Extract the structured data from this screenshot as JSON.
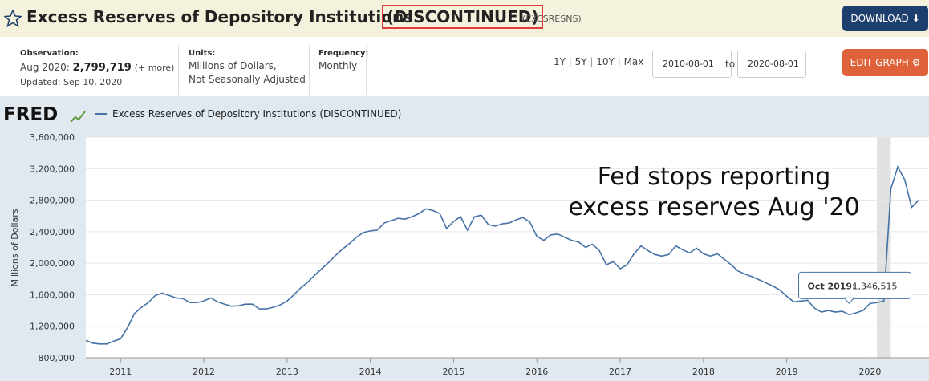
{
  "header": {
    "title": "Excess Reserves of Depository Institutions",
    "status": "(DISCONTINUED)",
    "series_id": "(EXCSRESNS)",
    "download": "DOWNLOAD"
  },
  "info": {
    "observation_label": "Observation:",
    "observation_date": "Aug 2020:",
    "observation_value": "2,799,719",
    "more": "(+ more)",
    "updated": "Updated: Sep 10, 2020",
    "units_label": "Units:",
    "units_1": "Millions of Dollars,",
    "units_2": "Not Seasonally Adjusted",
    "frequency_label": "Frequency:",
    "frequency": "Monthly"
  },
  "controls": {
    "ranges": [
      "1Y",
      "5Y",
      "10Y",
      "Max"
    ],
    "start_date": "2010-08-01",
    "to": "to",
    "end_date": "2020-08-01",
    "edit": "EDIT GRAPH"
  },
  "chart_data": {
    "type": "line",
    "logo": "FRED",
    "ylabel": "Millions of Dollars",
    "annotation": [
      "Fed stops reporting",
      "excess reserves Aug '20"
    ],
    "recession": [
      "2020-02-01",
      "2020-04-01"
    ],
    "xticks": [
      2011,
      2012,
      2013,
      2014,
      2015,
      2016,
      2017,
      2018,
      2019,
      2020
    ],
    "ylim": [
      800000,
      3600000
    ],
    "yticks": [
      {
        "value": 800000,
        "label": "800,000"
      },
      {
        "value": 1200000,
        "label": "1,200,000"
      },
      {
        "value": 1600000,
        "label": "1,600,000"
      },
      {
        "value": 2000000,
        "label": "2,000,000"
      },
      {
        "value": 2400000,
        "label": "2,400,000"
      },
      {
        "value": 2800000,
        "label": "2,800,000"
      },
      {
        "value": 3200000,
        "label": "3,200,000"
      },
      {
        "value": 3600000,
        "label": "3,600,000"
      }
    ],
    "grid": true,
    "tooltip": "Oct 2019:",
    "series": [
      {
        "name": "Excess Reserves of Depository Institutions (DISCONTINUED)",
        "color": "#4572a7",
        "values": [
          1020000,
          985000,
          975000,
          975000,
          1010000,
          1040000,
          1180000,
          1360000,
          1440000,
          1500000,
          1590000,
          1620000,
          1590000,
          1560000,
          1550000,
          1500000,
          1500000,
          1520000,
          1560000,
          1510000,
          1480000,
          1455000,
          1460000,
          1480000,
          1480000,
          1420000,
          1420000,
          1440000,
          1470000,
          1520000,
          1600000,
          1690000,
          1760000,
          1850000,
          1930000,
          2010000,
          2100000,
          2180000,
          2250000,
          2330000,
          2390000,
          2410000,
          2420000,
          2510000,
          2540000,
          2570000,
          2560000,
          2590000,
          2630000,
          2690000,
          2670000,
          2630000,
          2440000,
          2530000,
          2590000,
          2420000,
          2590000,
          2610000,
          2490000,
          2470000,
          2500000,
          2510000,
          2550000,
          2580000,
          2520000,
          2340000,
          2290000,
          2360000,
          2370000,
          2330000,
          2290000,
          2270000,
          2200000,
          2240000,
          2160000,
          1980000,
          2020000,
          1930000,
          1980000,
          2120000,
          2220000,
          2160000,
          2110000,
          2090000,
          2110000,
          2220000,
          2170000,
          2130000,
          2190000,
          2120000,
          2090000,
          2120000,
          2050000,
          1980000,
          1900000,
          1860000,
          1830000,
          1790000,
          1750000,
          1710000,
          1660000,
          1580000,
          1510000,
          1520000,
          1530000,
          1430000,
          1380000,
          1400000,
          1380000,
          1390000,
          1346515,
          1370000,
          1400000,
          1490000,
          1500000,
          1520000,
          2940000,
          3220000,
          3060000,
          2710000,
          2799719
        ],
        "value_labels": [
          null,
          null,
          null,
          null,
          null,
          null,
          null,
          null,
          null,
          null,
          null,
          null,
          null,
          null,
          null,
          null,
          null,
          null,
          null,
          null,
          null,
          null,
          null,
          null,
          null,
          null,
          null,
          null,
          null,
          null,
          null,
          null,
          null,
          null,
          null,
          null,
          null,
          null,
          null,
          null,
          null,
          null,
          null,
          null,
          null,
          null,
          null,
          null,
          null,
          null,
          null,
          null,
          null,
          null,
          null,
          null,
          null,
          null,
          null,
          null,
          null,
          null,
          null,
          null,
          null,
          null,
          null,
          null,
          null,
          null,
          null,
          null,
          null,
          null,
          null,
          null,
          null,
          null,
          null,
          null,
          null,
          null,
          null,
          null,
          null,
          null,
          null,
          null,
          null,
          null,
          null,
          null,
          null,
          null,
          null,
          null,
          null,
          null,
          null,
          null,
          null,
          null,
          null,
          null,
          null,
          null,
          null,
          null,
          null,
          null,
          "1,346,515",
          null,
          null,
          null,
          null,
          null,
          null,
          null,
          null,
          null,
          null
        ]
      }
    ]
  }
}
